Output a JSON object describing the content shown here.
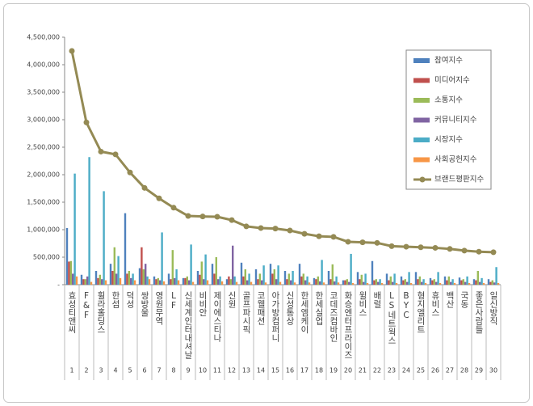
{
  "chart_data": {
    "type": "bar",
    "categories": [
      "효성티앤씨",
      "F&F",
      "휠라홀딩스",
      "한섬",
      "덕성",
      "쌍방울",
      "영원무역",
      "LF",
      "신세계인터내셔날",
      "비비안",
      "제이에스티나",
      "신원",
      "골프파시픽",
      "코웰패션",
      "아가방컴퍼니",
      "신성통상",
      "한세엠케이",
      "한세실업",
      "코데즈컴바인",
      "화승엔터프라이즈",
      "윌비스",
      "배럴",
      "LS네트웍스",
      "BYC",
      "형지엘리트",
      "휴비스",
      "백산",
      "국동",
      "좋은사람들",
      "일신방직"
    ],
    "category_numbers": [
      1,
      2,
      3,
      4,
      5,
      6,
      7,
      8,
      9,
      10,
      11,
      12,
      13,
      14,
      15,
      16,
      17,
      18,
      19,
      20,
      21,
      22,
      23,
      24,
      25,
      26,
      27,
      28,
      29,
      30
    ],
    "series": [
      {
        "name": "참여지수",
        "color": "#4f81bd",
        "values": [
          1030000,
          180000,
          250000,
          380000,
          1300000,
          300000,
          150000,
          200000,
          120000,
          250000,
          380000,
          100000,
          400000,
          280000,
          380000,
          250000,
          380000,
          120000,
          250000,
          80000,
          230000,
          430000,
          200000,
          150000,
          230000,
          120000,
          150000,
          130000,
          100000,
          100000
        ]
      },
      {
        "name": "미디어지수",
        "color": "#c0504d",
        "values": [
          420000,
          100000,
          120000,
          250000,
          200000,
          680000,
          100000,
          100000,
          120000,
          180000,
          200000,
          150000,
          150000,
          100000,
          200000,
          100000,
          150000,
          100000,
          100000,
          80000,
          100000,
          80000,
          80000,
          80000,
          100000,
          80000,
          80000,
          80000,
          80000,
          50000
        ]
      },
      {
        "name": "소통지수",
        "color": "#9bbb59",
        "values": [
          430000,
          100000,
          180000,
          680000,
          250000,
          280000,
          120000,
          630000,
          150000,
          420000,
          500000,
          100000,
          280000,
          200000,
          280000,
          200000,
          200000,
          150000,
          370000,
          100000,
          180000,
          100000,
          150000,
          100000,
          150000,
          100000,
          150000,
          100000,
          250000,
          80000
        ]
      },
      {
        "name": "커뮤니티지수",
        "color": "#8064a2",
        "values": [
          200000,
          150000,
          100000,
          200000,
          120000,
          380000,
          80000,
          120000,
          80000,
          100000,
          100000,
          710000,
          80000,
          80000,
          100000,
          80000,
          80000,
          60000,
          60000,
          50000,
          50000,
          50000,
          50000,
          50000,
          50000,
          50000,
          50000,
          50000,
          50000,
          40000
        ]
      },
      {
        "name": "시장지수",
        "color": "#4bacc6",
        "values": [
          2020000,
          2320000,
          1700000,
          520000,
          200000,
          150000,
          950000,
          280000,
          730000,
          550000,
          150000,
          150000,
          200000,
          350000,
          350000,
          250000,
          150000,
          450000,
          150000,
          560000,
          200000,
          100000,
          200000,
          230000,
          100000,
          230000,
          100000,
          150000,
          120000,
          320000
        ]
      },
      {
        "name": "사회공헌지수",
        "color": "#f79646",
        "values": [
          150000,
          50000,
          80000,
          120000,
          80000,
          100000,
          60000,
          80000,
          50000,
          80000,
          60000,
          50000,
          50000,
          40000,
          50000,
          40000,
          40000,
          40000,
          40000,
          30000,
          30000,
          30000,
          30000,
          30000,
          30000,
          30000,
          30000,
          30000,
          30000,
          30000
        ]
      },
      {
        "name": "브랜드평판지수",
        "type": "line",
        "color": "#948a54",
        "values": [
          4250000,
          2950000,
          2420000,
          2370000,
          2040000,
          1760000,
          1570000,
          1400000,
          1250000,
          1240000,
          1235000,
          1175000,
          1060000,
          1030000,
          1020000,
          985000,
          925000,
          880000,
          870000,
          780000,
          770000,
          760000,
          700000,
          690000,
          680000,
          670000,
          650000,
          620000,
          600000,
          590000
        ]
      }
    ],
    "ylim": [
      0,
      4500000
    ],
    "yticks": [
      {
        "value": 0,
        "label": "-"
      },
      {
        "value": 500000,
        "label": "500,000"
      },
      {
        "value": 1000000,
        "label": "1,000,000"
      },
      {
        "value": 1500000,
        "label": "1,500,000"
      },
      {
        "value": 2000000,
        "label": "2,000,000"
      },
      {
        "value": 2500000,
        "label": "2,500,000"
      },
      {
        "value": 3000000,
        "label": "3,000,000"
      },
      {
        "value": 3500000,
        "label": "3,500,000"
      },
      {
        "value": 4000000,
        "label": "4,000,000"
      },
      {
        "value": 4500000,
        "label": "4,500,000"
      }
    ],
    "grid": false
  }
}
